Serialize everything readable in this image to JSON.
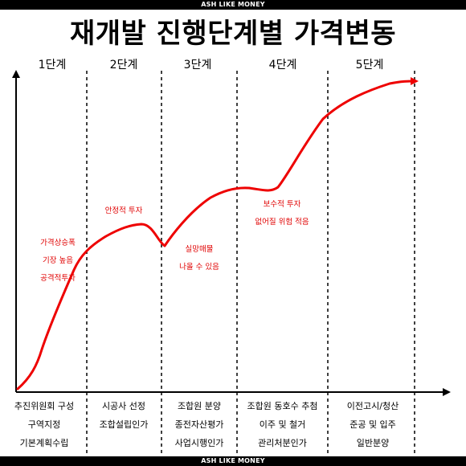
{
  "banner": {
    "top_text": "ASH LIKE MONEY",
    "bottom_text": "ASH LIKE MONEY"
  },
  "title": "재개발 진행단계별 가격변동",
  "stages": [
    "1단계",
    "2단계",
    "3단계",
    "4단계",
    "5단계"
  ],
  "annotations": [
    [
      "가격상승폭",
      "기장 높음",
      "공격적투자"
    ],
    [
      "안정적 투자"
    ],
    [
      "실망매물",
      "나올 수 있음"
    ],
    [
      "보수적 투자",
      "없어질 위험 적음"
    ]
  ],
  "phases": [
    [
      "추진위원회 구성",
      "구역지정",
      "기본계획수립"
    ],
    [
      "시공사 선정",
      "조합설립인가"
    ],
    [
      "조합원 분양",
      "종전자산평가",
      "사업시행인가"
    ],
    [
      "조합원 동호수 추첨",
      "이주 및 철거",
      "관리처분인가"
    ],
    [
      "이전고시/청산",
      "준공 및 입주",
      "일반분양"
    ]
  ],
  "colors": {
    "curve": "#ee0000",
    "annotation": "#e00000",
    "axis": "#000000"
  }
}
